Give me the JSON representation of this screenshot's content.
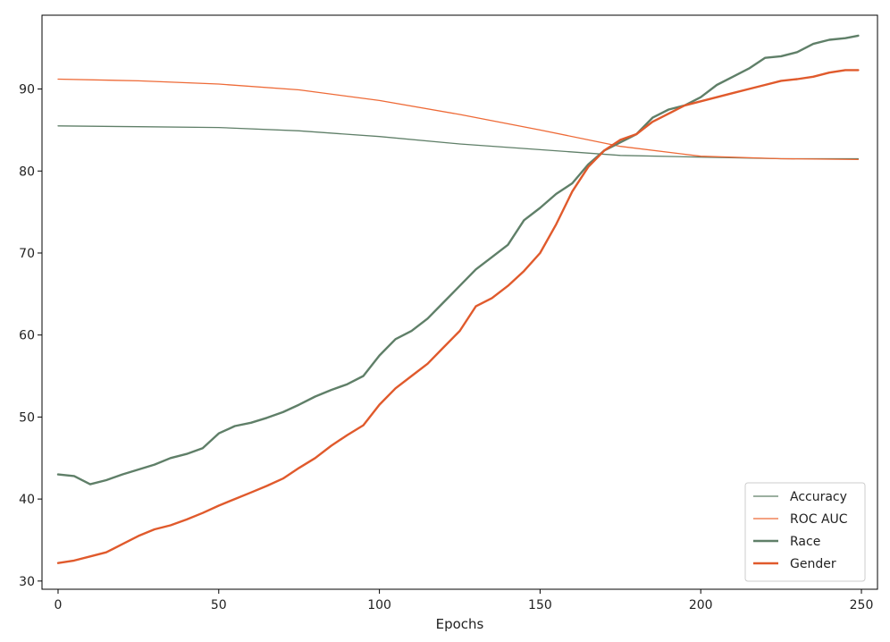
{
  "chart_data": {
    "type": "line",
    "title": "",
    "xlabel": "Epochs",
    "ylabel": "",
    "xlim": [
      -5,
      255
    ],
    "ylim": [
      29,
      99
    ],
    "xticks": [
      0,
      50,
      100,
      150,
      200,
      250
    ],
    "yticks": [
      30,
      40,
      50,
      60,
      70,
      80,
      90
    ],
    "grid": false,
    "legend_position": "lower-right",
    "series": [
      {
        "name": "Accuracy",
        "color": "#5f7f68",
        "stroke": "thin",
        "x": [
          0,
          25,
          50,
          75,
          100,
          125,
          150,
          175,
          200,
          225,
          249
        ],
        "y": [
          85.5,
          85.4,
          85.3,
          84.9,
          84.2,
          83.3,
          82.6,
          81.9,
          81.7,
          81.5,
          81.5
        ]
      },
      {
        "name": "ROC AUC",
        "color": "#ee6a37",
        "stroke": "thin",
        "x": [
          0,
          25,
          50,
          75,
          100,
          125,
          150,
          175,
          200,
          225,
          249
        ],
        "y": [
          91.2,
          91.0,
          90.6,
          89.9,
          88.6,
          86.9,
          85.0,
          83.0,
          81.8,
          81.5,
          81.4
        ]
      },
      {
        "name": "Race",
        "color": "#5f7f68",
        "stroke": "thick",
        "x": [
          0,
          5,
          10,
          15,
          20,
          25,
          30,
          35,
          40,
          45,
          50,
          55,
          60,
          65,
          70,
          75,
          80,
          85,
          90,
          95,
          100,
          105,
          110,
          115,
          120,
          125,
          130,
          135,
          140,
          145,
          150,
          155,
          160,
          165,
          170,
          175,
          180,
          185,
          190,
          195,
          200,
          205,
          210,
          215,
          220,
          225,
          230,
          235,
          240,
          245,
          249
        ],
        "y": [
          43.0,
          42.8,
          41.8,
          42.3,
          43.0,
          43.6,
          44.2,
          45.0,
          45.5,
          46.2,
          48.0,
          48.9,
          49.3,
          49.9,
          50.6,
          51.5,
          52.5,
          53.3,
          54.0,
          55.0,
          57.5,
          59.5,
          60.5,
          62.0,
          64.0,
          66.0,
          68.0,
          69.5,
          71.0,
          74.0,
          75.5,
          77.2,
          78.5,
          80.8,
          82.5,
          83.5,
          84.5,
          86.5,
          87.5,
          88.0,
          89.0,
          90.5,
          91.5,
          92.5,
          93.8,
          94.0,
          94.5,
          95.5,
          96.0,
          96.2,
          96.5
        ]
      },
      {
        "name": "Gender",
        "color": "#e05a2c",
        "stroke": "thick",
        "x": [
          0,
          5,
          10,
          15,
          20,
          25,
          30,
          35,
          40,
          45,
          50,
          55,
          60,
          65,
          70,
          75,
          80,
          85,
          90,
          95,
          100,
          105,
          110,
          115,
          120,
          125,
          130,
          135,
          140,
          145,
          150,
          155,
          160,
          165,
          170,
          175,
          180,
          185,
          190,
          195,
          200,
          205,
          210,
          215,
          220,
          225,
          230,
          235,
          240,
          245,
          249
        ],
        "y": [
          32.2,
          32.5,
          33.0,
          33.5,
          34.5,
          35.5,
          36.3,
          36.8,
          37.5,
          38.3,
          39.2,
          40.0,
          40.8,
          41.6,
          42.5,
          43.8,
          45.0,
          46.5,
          47.8,
          49.0,
          51.5,
          53.5,
          55.0,
          56.5,
          58.5,
          60.5,
          63.5,
          64.5,
          66.0,
          67.8,
          70.0,
          73.5,
          77.5,
          80.5,
          82.5,
          83.8,
          84.5,
          86.0,
          87.0,
          88.0,
          88.5,
          89.0,
          89.5,
          90.0,
          90.5,
          91.0,
          91.2,
          91.5,
          92.0,
          92.3,
          92.3
        ]
      }
    ]
  }
}
